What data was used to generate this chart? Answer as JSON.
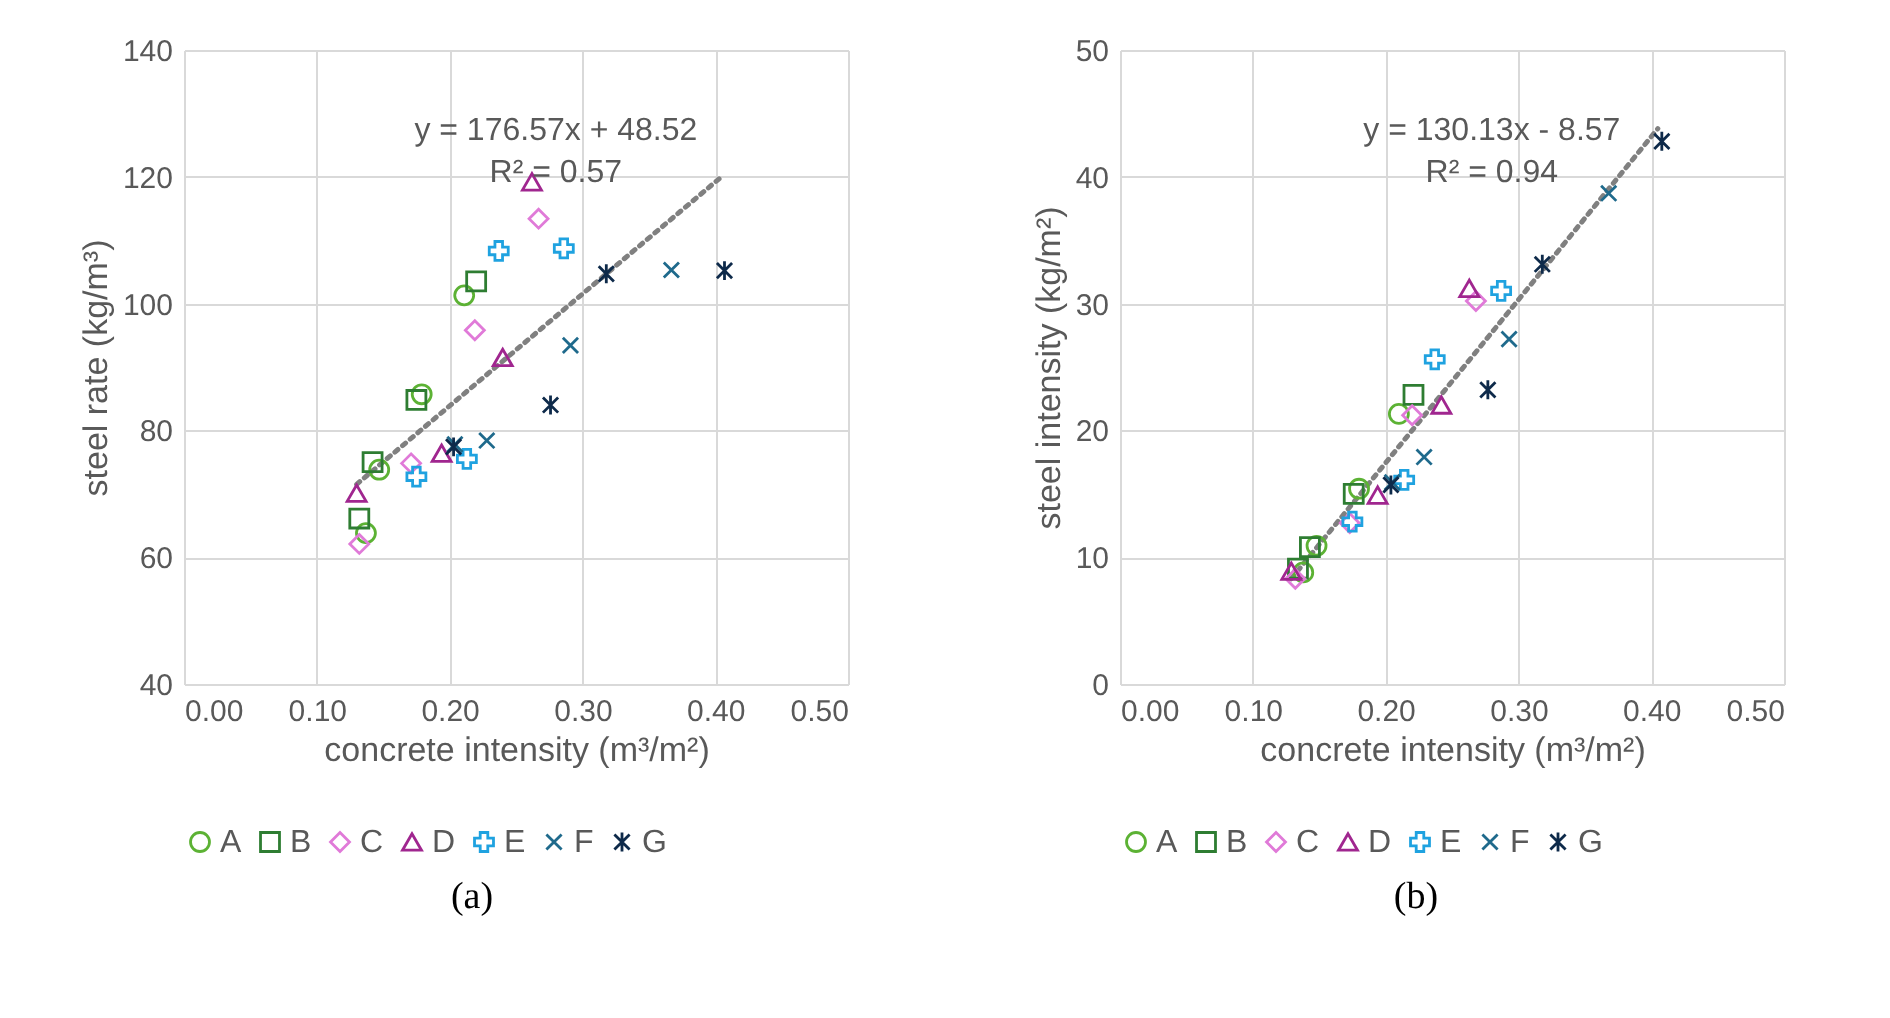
{
  "chart_data": [
    {
      "type": "scatter",
      "xlabel": "concrete intensity (m³/m²)",
      "ylabel": "steel rate (kg/m³)",
      "xlim": [
        0,
        0.5
      ],
      "ylim": [
        40,
        140
      ],
      "xticks": [
        {
          "value": 0,
          "label": "0.00"
        },
        {
          "value": 0.1,
          "label": "0.10"
        },
        {
          "value": 0.2,
          "label": "0.20"
        },
        {
          "value": 0.3,
          "label": "0.30"
        },
        {
          "value": 0.4,
          "label": "0.40"
        },
        {
          "value": 0.5,
          "label": "0.50"
        }
      ],
      "yticks": [
        40,
        60,
        80,
        100,
        120,
        140
      ],
      "grid": true,
      "legend": "bottom",
      "annotations": [
        "y = 176.57x + 48.52",
        "R² = 0.57",
        "(a)"
      ],
      "series": [
        {
          "name": "A",
          "color": "#5cb234",
          "marker": "circle",
          "x": [
            0.147,
            0.137,
            0.179,
            0.211
          ],
          "values": [
            73.8,
            63.8,
            85.7,
            101.3
          ]
        },
        {
          "name": "B",
          "color": "#2e7d32",
          "marker": "square",
          "x": [
            0.142,
            0.132,
            0.175,
            0.22
          ],
          "values": [
            75.0,
            66.1,
            84.8,
            103.5
          ]
        },
        {
          "name": "C",
          "color": "#e07ad8",
          "marker": "diamond",
          "x": [
            0.132,
            0.171,
            0.219,
            0.267
          ],
          "values": [
            62.1,
            74.8,
            95.8,
            113.4
          ]
        },
        {
          "name": "D",
          "color": "#a0268f",
          "marker": "triangle",
          "x": [
            0.13,
            0.194,
            0.24,
            0.262
          ],
          "values": [
            70.1,
            76.4,
            91.5,
            119.2
          ]
        },
        {
          "name": "E",
          "color": "#1fa2e0",
          "marker": "plus",
          "x": [
            0.175,
            0.213,
            0.237,
            0.286
          ],
          "values": [
            72.7,
            75.5,
            108.3,
            108.7
          ]
        },
        {
          "name": "F",
          "color": "#1f6a8c",
          "marker": "x",
          "x": [
            0.204,
            0.228,
            0.291,
            0.367
          ],
          "values": [
            77.8,
            78.4,
            93.4,
            105.3
          ]
        },
        {
          "name": "G",
          "color": "#0e2a4a",
          "marker": "cross",
          "x": [
            0.203,
            0.276,
            0.318,
            0.407
          ],
          "values": [
            77.4,
            84.0,
            104.7,
            105.2
          ]
        },
        {
          "type": "line",
          "color": "#808080",
          "line_style": "dotted",
          "x": [
            0.13,
            0.403
          ],
          "values": [
            71.5,
            119.7
          ]
        }
      ]
    },
    {
      "type": "scatter",
      "xlabel": "concrete intensity (m³/m²)",
      "ylabel": "steel intensity (kg/m²)",
      "xlim": [
        0,
        0.5
      ],
      "ylim": [
        0,
        50
      ],
      "xticks": [
        {
          "value": 0,
          "label": "0.00"
        },
        {
          "value": 0.1,
          "label": "0.10"
        },
        {
          "value": 0.2,
          "label": "0.20"
        },
        {
          "value": 0.3,
          "label": "0.30"
        },
        {
          "value": 0.4,
          "label": "0.40"
        },
        {
          "value": 0.5,
          "label": "0.50"
        }
      ],
      "yticks": [
        0,
        10,
        20,
        30,
        40,
        50
      ],
      "grid": true,
      "legend": "bottom",
      "annotations": [
        "y = 130.13x - 8.57",
        "R² = 0.94",
        "(b)"
      ],
      "series": [
        {
          "name": "A",
          "color": "#5cb234",
          "marker": "circle",
          "x": [
            0.138,
            0.148,
            0.18,
            0.21
          ],
          "values": [
            8.8,
            10.9,
            15.4,
            21.3
          ]
        },
        {
          "name": "B",
          "color": "#2e7d32",
          "marker": "square",
          "x": [
            0.134,
            0.143,
            0.176,
            0.221
          ],
          "values": [
            9.1,
            10.8,
            15.0,
            22.8
          ]
        },
        {
          "name": "C",
          "color": "#e07ad8",
          "marker": "diamond",
          "x": [
            0.132,
            0.173,
            0.22,
            0.268
          ],
          "values": [
            8.3,
            12.7,
            21.2,
            30.2
          ]
        },
        {
          "name": "D",
          "color": "#a0268f",
          "marker": "triangle",
          "x": [
            0.129,
            0.194,
            0.242,
            0.263
          ],
          "values": [
            8.9,
            14.9,
            22.0,
            31.2
          ]
        },
        {
          "name": "E",
          "color": "#1fa2e0",
          "marker": "plus",
          "x": [
            0.175,
            0.214,
            0.237,
            0.287
          ],
          "values": [
            12.8,
            16.1,
            25.6,
            31.0
          ]
        },
        {
          "name": "F",
          "color": "#1f6a8c",
          "marker": "x",
          "x": [
            0.205,
            0.229,
            0.293,
            0.368
          ],
          "values": [
            15.9,
            17.9,
            27.2,
            38.7
          ]
        },
        {
          "name": "G",
          "color": "#0e2a4a",
          "marker": "cross",
          "x": [
            0.204,
            0.277,
            0.318,
            0.408
          ],
          "values": [
            15.7,
            23.2,
            33.1,
            42.8
          ]
        },
        {
          "type": "line",
          "color": "#808080",
          "line_style": "dotted",
          "x": [
            0.129,
            0.405
          ],
          "values": [
            8.3,
            43.8
          ]
        }
      ]
    }
  ]
}
